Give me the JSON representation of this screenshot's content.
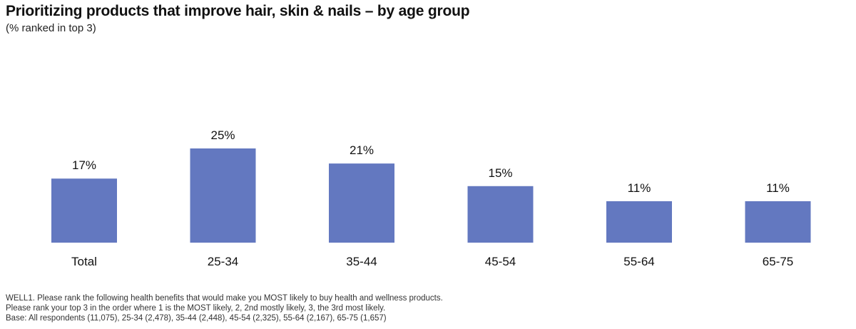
{
  "title": "Prioritizing products that improve hair, skin & nails – by age group",
  "subtitle": "(% ranked in top 3)",
  "chart_data": {
    "type": "bar",
    "categories": [
      "Total",
      "25-34",
      "35-44",
      "45-54",
      "55-64",
      "65-75"
    ],
    "values": [
      17,
      25,
      21,
      15,
      11,
      11
    ],
    "value_labels": [
      "17%",
      "25%",
      "21%",
      "15%",
      "11%",
      "11%"
    ],
    "ylim": [
      0,
      25
    ],
    "grid": false,
    "bar_color": "#6378C0"
  },
  "notes": [
    "WELL1. Please rank the following health benefits that would make you MOST likely to buy health and wellness products.",
    "Please rank your top 3 in the order where 1 is the MOST likely, 2, 2nd mostly likely, 3, the 3rd most likely.",
    "Base: All respondents (11,075), 25-34 (2,478), 35-44 (2,448), 45-54 (2,325), 55-64 (2,167), 65-75 (1,657)"
  ]
}
